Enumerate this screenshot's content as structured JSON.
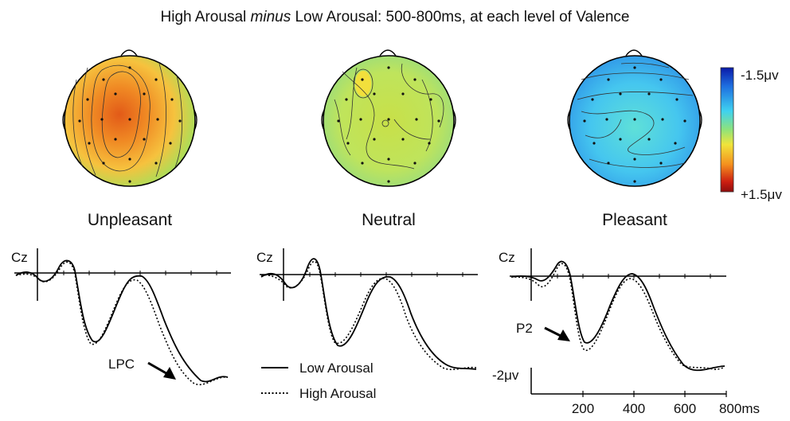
{
  "title": {
    "before": "High Arousal ",
    "emph": "minus",
    "after": " Low Arousal: 500-800ms, at each level of Valence"
  },
  "conditions": [
    {
      "label": "Unpleasant"
    },
    {
      "label": "Neutral"
    },
    {
      "label": "Pleasant"
    }
  ],
  "color_scale": {
    "top_label": "-1.5μv",
    "bottom_label": "+1.5μv",
    "stops": [
      "#0a1aa8",
      "#1e6fe0",
      "#3fd2f0",
      "#8fe37a",
      "#f0e43a",
      "#f4901e",
      "#cc1e10",
      "#8e0d0d"
    ]
  },
  "topomap_fills": {
    "unpleasant": "#f3b64a",
    "neutral": "#cfe04e",
    "pleasant": "#72d6ee"
  },
  "erp": {
    "channel_label": "Cz",
    "annotations": {
      "lpc": "LPC",
      "p2": "P2"
    },
    "scale": {
      "amplitude_label": "-2μv",
      "ticks": [
        "200",
        "400",
        "600",
        "800ms"
      ]
    },
    "legend": {
      "solid": "Low Arousal",
      "dotted": "High Arousal"
    },
    "line_colors": {
      "low": "#000000",
      "high": "#000000"
    }
  }
}
